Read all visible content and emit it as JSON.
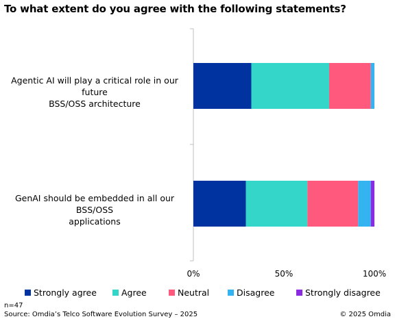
{
  "title": "To what extent do you agree with the following statements?",
  "chart_data": {
    "type": "bar",
    "orientation": "horizontal",
    "stacked": true,
    "normalized": true,
    "categories": [
      "Agentic AI will play a critical role in our future BSS/OSS architecture",
      "GenAI should be embedded in all our BSS/OSS applications"
    ],
    "category_lines": [
      [
        "Agentic AI will play a critical role in our future",
        "BSS/OSS architecture"
      ],
      [
        "GenAI should be embedded in all our BSS/OSS",
        "applications"
      ]
    ],
    "series": [
      {
        "name": "Strongly agree",
        "color": "#0033a0",
        "values": [
          32,
          29
        ]
      },
      {
        "name": "Agree",
        "color": "#33d6c8",
        "values": [
          43,
          34
        ]
      },
      {
        "name": "Neutral",
        "color": "#ff5a7e",
        "values": [
          23,
          28
        ]
      },
      {
        "name": "Disagree",
        "color": "#33b4f0",
        "values": [
          2,
          7
        ]
      },
      {
        "name": "Strongly disagree",
        "color": "#8a2be2",
        "values": [
          0,
          2
        ]
      }
    ],
    "xlim": [
      0,
      100
    ],
    "xticks": [
      "0%",
      "50%",
      "100%"
    ],
    "grid": false,
    "legend_position": "bottom"
  },
  "footer": {
    "sample": "n=47",
    "source": "Source: Omdia’s Telco Software Evolution Survey – 2025",
    "copyright": "© 2025 Omdia"
  }
}
